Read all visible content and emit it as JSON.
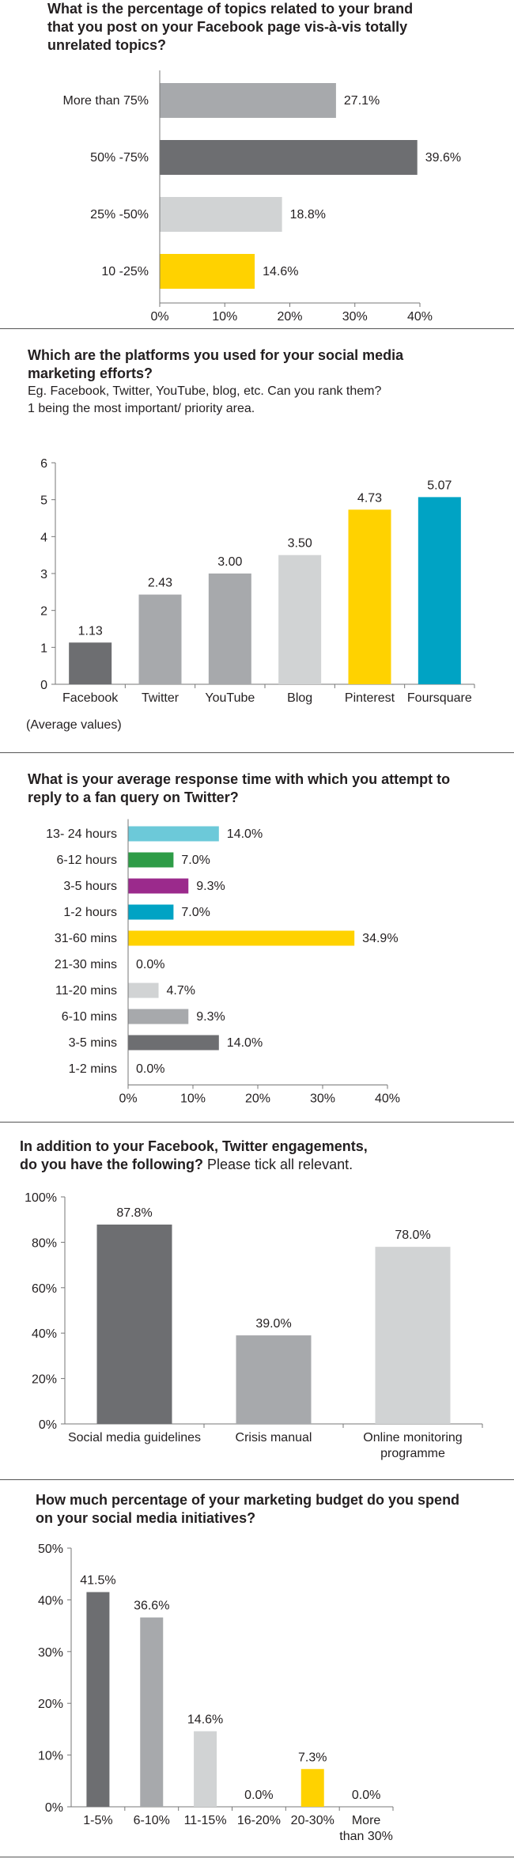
{
  "colors": {
    "dark": "#6d6e71",
    "mid": "#a7a9ac",
    "light": "#d1d3d4",
    "yellow": "#ffd200",
    "teal": "#00a3c4",
    "skyblue": "#6cc9d9",
    "green": "#2e9c47",
    "purple": "#9b2a8c",
    "axis": "#777777"
  },
  "chart_data": [
    {
      "type": "bar",
      "orientation": "horizontal",
      "title": "What is the percentage of topics related to your brand that you post on your Facebook page vis-à-vis totally unrelated topics?",
      "title_lines": [
        "What is the percentage of topics related to your brand",
        "that you post on your Facebook page vis-à-vis totally",
        "unrelated topics?"
      ],
      "categories": [
        "More than 75%",
        "50% -75%",
        "25% -50%",
        "10 -25%"
      ],
      "values": [
        27.1,
        39.6,
        18.8,
        14.6
      ],
      "value_labels": [
        "27.1%",
        "39.6%",
        "18.8%",
        "14.6%"
      ],
      "bar_colors": [
        "mid",
        "dark",
        "light",
        "yellow"
      ],
      "xlim": [
        0,
        40
      ],
      "xticks": [
        0,
        10,
        20,
        30,
        40
      ],
      "xtick_labels": [
        "0%",
        "10%",
        "20%",
        "30%",
        "40%"
      ]
    },
    {
      "type": "bar",
      "title": "Which are the platforms you used for your social media marketing efforts?",
      "title_lines": [
        "Which are the platforms you used for your social media",
        "marketing efforts?"
      ],
      "subtitle_lines": [
        "Eg. Facebook, Twitter, YouTube, blog, etc. Can you rank them?",
        "1 being the most important/ priority area."
      ],
      "categories": [
        "Facebook",
        "Twitter",
        "YouTube",
        "Blog",
        "Pinterest",
        "Foursquare"
      ],
      "values": [
        1.13,
        2.43,
        3.0,
        3.5,
        4.73,
        5.07
      ],
      "value_labels": [
        "1.13",
        "2.43",
        "3.00",
        "3.50",
        "4.73",
        "5.07"
      ],
      "bar_colors": [
        "dark",
        "mid",
        "mid",
        "light",
        "yellow",
        "teal"
      ],
      "ylim": [
        0,
        6
      ],
      "yticks": [
        0,
        1,
        2,
        3,
        4,
        5,
        6
      ],
      "ytick_labels": [
        "0",
        "1",
        "2",
        "3",
        "4",
        "5",
        "6"
      ],
      "note": "(Average values)"
    },
    {
      "type": "bar",
      "orientation": "horizontal",
      "title": "What is your average response time with which you attempt to reply to a fan query on Twitter?",
      "title_lines": [
        "What is your average response time with which you attempt to",
        "reply to a fan query on Twitter?"
      ],
      "categories": [
        "13- 24 hours",
        "6-12 hours",
        "3-5 hours",
        "1-2 hours",
        "31-60 mins",
        "21-30 mins",
        "11-20 mins",
        "6-10 mins",
        "3-5 mins",
        "1-2 mins"
      ],
      "values": [
        14.0,
        7.0,
        9.3,
        7.0,
        34.9,
        0.0,
        4.7,
        9.3,
        14.0,
        0.0
      ],
      "value_labels": [
        "14.0%",
        "7.0%",
        "9.3%",
        "7.0%",
        "34.9%",
        "0.0%",
        "4.7%",
        "9.3%",
        "14.0%",
        "0.0%"
      ],
      "bar_colors": [
        "skyblue",
        "green",
        "purple",
        "teal",
        "yellow",
        "light",
        "light",
        "mid",
        "dark",
        "dark"
      ],
      "xlim": [
        0,
        40
      ],
      "xticks": [
        0,
        10,
        20,
        30,
        40
      ],
      "xtick_labels": [
        "0%",
        "10%",
        "20%",
        "30%",
        "40%"
      ]
    },
    {
      "type": "bar",
      "title": "In addition to your Facebook, Twitter engagements, do you have the following? Please tick all relevant.",
      "title_lines": [
        "In addition to your Facebook, Twitter engagements,",
        "do you have the following?"
      ],
      "title_suffix": " Please tick all relevant.",
      "categories": [
        "Social media guidelines",
        "Crisis manual",
        "Online monitoring programme"
      ],
      "category_lines": [
        [
          "Social media guidelines"
        ],
        [
          "Crisis manual"
        ],
        [
          "Online monitoring",
          "programme"
        ]
      ],
      "values": [
        87.8,
        39.0,
        78.0
      ],
      "value_labels": [
        "87.8%",
        "39.0%",
        "78.0%"
      ],
      "bar_colors": [
        "dark",
        "mid",
        "light"
      ],
      "ylim": [
        0,
        100
      ],
      "yticks": [
        0,
        20,
        40,
        60,
        80,
        100
      ],
      "ytick_labels": [
        "0%",
        "20%",
        "40%",
        "60%",
        "80%",
        "100%"
      ]
    },
    {
      "type": "bar",
      "title": "How much percentage of your marketing budget do you spend on your social media initiatives?",
      "title_lines": [
        "How much percentage of your marketing budget do you spend",
        "on your social media initiatives?"
      ],
      "categories": [
        "1-5%",
        "6-10%",
        "11-15%",
        "16-20%",
        "20-30%",
        "More than 30%"
      ],
      "category_lines": [
        [
          "1-5%"
        ],
        [
          "6-10%"
        ],
        [
          "11-15%"
        ],
        [
          "16-20%"
        ],
        [
          "20-30%"
        ],
        [
          "More",
          "than 30%"
        ]
      ],
      "values": [
        41.5,
        36.6,
        14.6,
        0.0,
        7.3,
        0.0
      ],
      "value_labels": [
        "41.5%",
        "36.6%",
        "14.6%",
        "0.0%",
        "7.3%",
        "0.0%"
      ],
      "bar_colors": [
        "dark",
        "mid",
        "light",
        "light",
        "yellow",
        "light"
      ],
      "ylim": [
        0,
        50
      ],
      "yticks": [
        0,
        10,
        20,
        30,
        40,
        50
      ],
      "ytick_labels": [
        "0%",
        "10%",
        "20%",
        "30%",
        "40%",
        "50%"
      ]
    }
  ]
}
